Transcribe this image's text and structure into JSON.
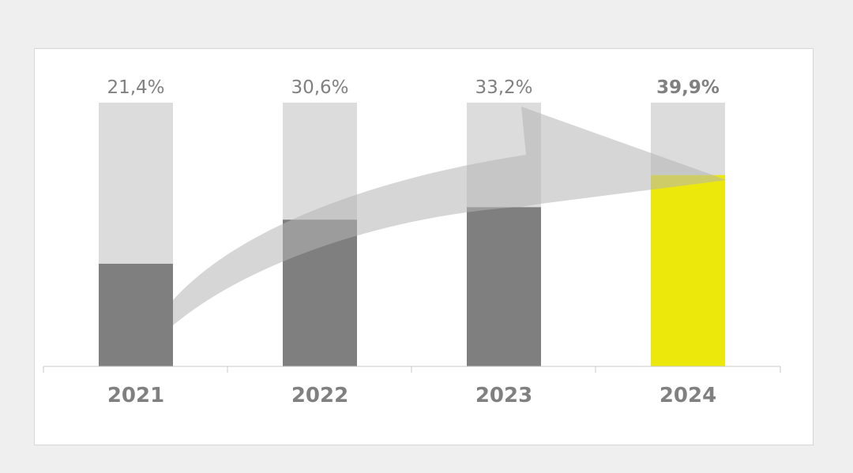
{
  "chart_data": {
    "type": "bar",
    "categories": [
      "2021",
      "2022",
      "2023",
      "2024"
    ],
    "values": [
      21.4,
      30.6,
      33.2,
      39.9
    ],
    "value_labels": [
      "21,4%",
      "30,6%",
      "33,2%",
      "39,9%"
    ],
    "ylim": [
      0,
      55
    ],
    "grid": false,
    "legend": "none",
    "colors": {
      "track": "#dcdcdd",
      "bar": "#7f7f7f",
      "highlight": "#ede80b",
      "arrow": "#b5b5b5",
      "label": "#808080",
      "axis": "#c8c8c8"
    },
    "highlight_index": 3
  }
}
